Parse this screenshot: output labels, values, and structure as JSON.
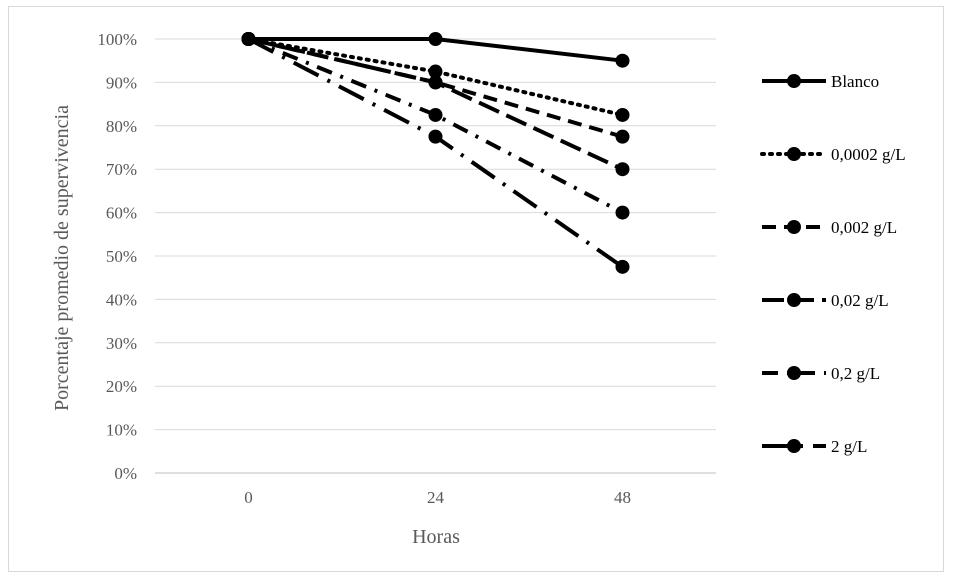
{
  "chart_data": {
    "type": "line",
    "title": "",
    "xlabel": "Horas",
    "ylabel": "Porcentaje promedio de supervivencia",
    "categories": [
      "0",
      "24",
      "48"
    ],
    "ylim": [
      0,
      100
    ],
    "yticks": [
      "0%",
      "10%",
      "20%",
      "30%",
      "40%",
      "50%",
      "60%",
      "70%",
      "80%",
      "90%",
      "100%"
    ],
    "grid": true,
    "legend_position": "right",
    "series": [
      {
        "name": "Blanco",
        "values": [
          100,
          100,
          95
        ],
        "dash": "solid",
        "color": "#000000"
      },
      {
        "name": "0,0002 g/L",
        "values": [
          100,
          92.5,
          82.5
        ],
        "dash": "dot",
        "color": "#000000"
      },
      {
        "name": "0,002 g/L",
        "values": [
          100,
          90,
          77.5
        ],
        "dash": "dash",
        "color": "#000000"
      },
      {
        "name": "0,02 g/L",
        "values": [
          100,
          90,
          70
        ],
        "dash": "longdash",
        "color": "#000000"
      },
      {
        "name": "0,2 g/L",
        "values": [
          100,
          82.5,
          60
        ],
        "dash": "dashdot",
        "color": "#000000"
      },
      {
        "name": "2 g/L",
        "values": [
          100,
          77.5,
          47.5
        ],
        "dash": "longdashdot",
        "color": "#000000"
      }
    ]
  }
}
